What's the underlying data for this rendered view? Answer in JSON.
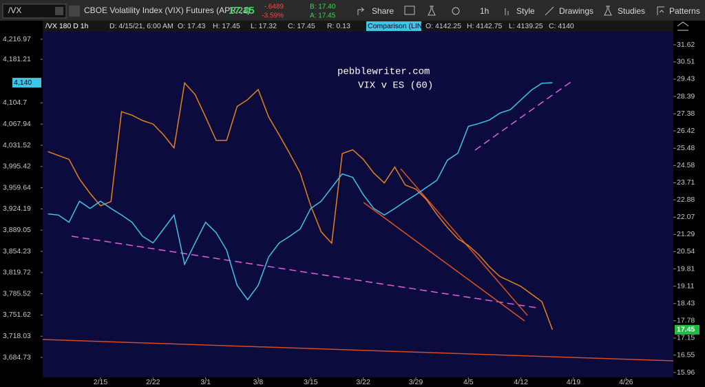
{
  "toolbar": {
    "symbol": "/VX",
    "description": "CBOE Volatility Index (VIX) Futures (APR 21)",
    "last": "17.45",
    "change": "-.6489",
    "change_pct": "-3.59%",
    "bid": "B: 17.40",
    "ask": "A: 17.45",
    "buttons": [
      "Share",
      "1h",
      "Style",
      "Drawings",
      "Studies",
      "Patterns"
    ]
  },
  "header": {
    "study": "/VX 180 D 1h",
    "fields": [
      "D: 4/15/21, 6:00 AM",
      "O: 17.43",
      "H: 17.45",
      "L: 17.32",
      "C: 17.45",
      "R: 0.13"
    ],
    "comparison": "Comparison (LINE, /ES)",
    "comparison_fields": [
      "O: 4142.25",
      "H: 4142.75",
      "L: 4139.25",
      "C: 4140"
    ]
  },
  "chart_data": {
    "type": "line",
    "annotations": [
      "pebblewriter.com",
      "VIX v ES (60)"
    ],
    "categories": [
      null,
      null,
      null,
      null,
      null,
      "2/15",
      null,
      null,
      null,
      null,
      "2/22",
      null,
      null,
      null,
      null,
      "3/1",
      null,
      null,
      null,
      null,
      "3/8",
      null,
      null,
      null,
      null,
      "3/15",
      null,
      null,
      null,
      null,
      "3/22",
      null,
      null,
      null,
      null,
      "3/29",
      null,
      null,
      null,
      null,
      "4/5",
      null,
      null,
      null,
      null,
      "4/12",
      null,
      null,
      null,
      null,
      "4/19",
      null,
      null,
      null,
      null,
      "4/26",
      null,
      null,
      null,
      null
    ],
    "series": [
      {
        "color": "#e8801e",
        "axis": "y2",
        "values": [
          25.3,
          25.1,
          24.9,
          23.9,
          23.2,
          22.6,
          22.8,
          27.5,
          27.3,
          27.0,
          26.8,
          26.2,
          25.5,
          29.2,
          28.5,
          27.2,
          25.9,
          25.9,
          27.8,
          28.2,
          28.8,
          27.2,
          26.2,
          25.2,
          24.2,
          22.6,
          21.4,
          20.9,
          25.2,
          25.4,
          24.9,
          24.2,
          23.7,
          24.5,
          23.6,
          23.4,
          22.9,
          22.2,
          21.6,
          21.1,
          20.8,
          20.4,
          19.9,
          19.5,
          19.3,
          19.1,
          18.8,
          18.5,
          17.45,
          null,
          null,
          null,
          null,
          null,
          null,
          null,
          null,
          null,
          null,
          null
        ]
      },
      {
        "color": "#3ec6e6",
        "values": [
          3916,
          3914,
          3902,
          3937,
          3925,
          3937,
          3925,
          3914,
          3902,
          3879,
          3868,
          3891,
          3914,
          3833,
          3868,
          3902,
          3885,
          3856,
          3799,
          3776,
          3799,
          3845,
          3868,
          3879,
          3891,
          3925,
          3937,
          3960,
          3983,
          3977,
          3948,
          3925,
          3914,
          3925,
          3937,
          3948,
          3960,
          3972,
          4006,
          4018,
          4064,
          4069,
          4075,
          4087,
          4093,
          4110,
          4127,
          4139,
          4140,
          null,
          null,
          null,
          null,
          null,
          null,
          null,
          null,
          null,
          null,
          null
        ]
      }
    ],
    "ylog": true,
    "ylim": [
      3653.7,
      4240.4
    ],
    "yticks": [
      {
        "value": 4216.97,
        "label": "4,216.97"
      },
      {
        "value": 4181.21,
        "label": "4,181.21"
      },
      {
        "value": 4104.7,
        "label": "4,104.7"
      },
      {
        "value": 4067.94,
        "label": "4,067.94"
      },
      {
        "value": 4031.52,
        "label": "4,031.52"
      },
      {
        "value": 3995.42,
        "label": "3,995.42"
      },
      {
        "value": 3959.64,
        "label": "3,959.64"
      },
      {
        "value": 3924.19,
        "label": "3,924.19"
      },
      {
        "value": 3889.05,
        "label": "3,889.05"
      },
      {
        "value": 3854.23,
        "label": "3,854.23"
      },
      {
        "value": 3819.72,
        "label": "3,819.72"
      },
      {
        "value": 3785.52,
        "label": "3,785.52"
      },
      {
        "value": 3751.62,
        "label": "3,751.62"
      },
      {
        "value": 3718.03,
        "label": "3,718.03"
      },
      {
        "value": 3684.73,
        "label": "3,684.73"
      }
    ],
    "y_last": {
      "value": 4140,
      "label": "4,140"
    },
    "y2log": true,
    "y2lim": [
      15.8,
      32.87
    ],
    "y2ticks": [
      31.62,
      30.51,
      29.43,
      28.39,
      27.38,
      26.42,
      25.48,
      24.58,
      23.71,
      22.88,
      22.07,
      21.29,
      20.54,
      19.81,
      19.11,
      18.43,
      17.78,
      17.15,
      16.55,
      15.96
    ],
    "y2_last": 17.45,
    "grid": false
  }
}
